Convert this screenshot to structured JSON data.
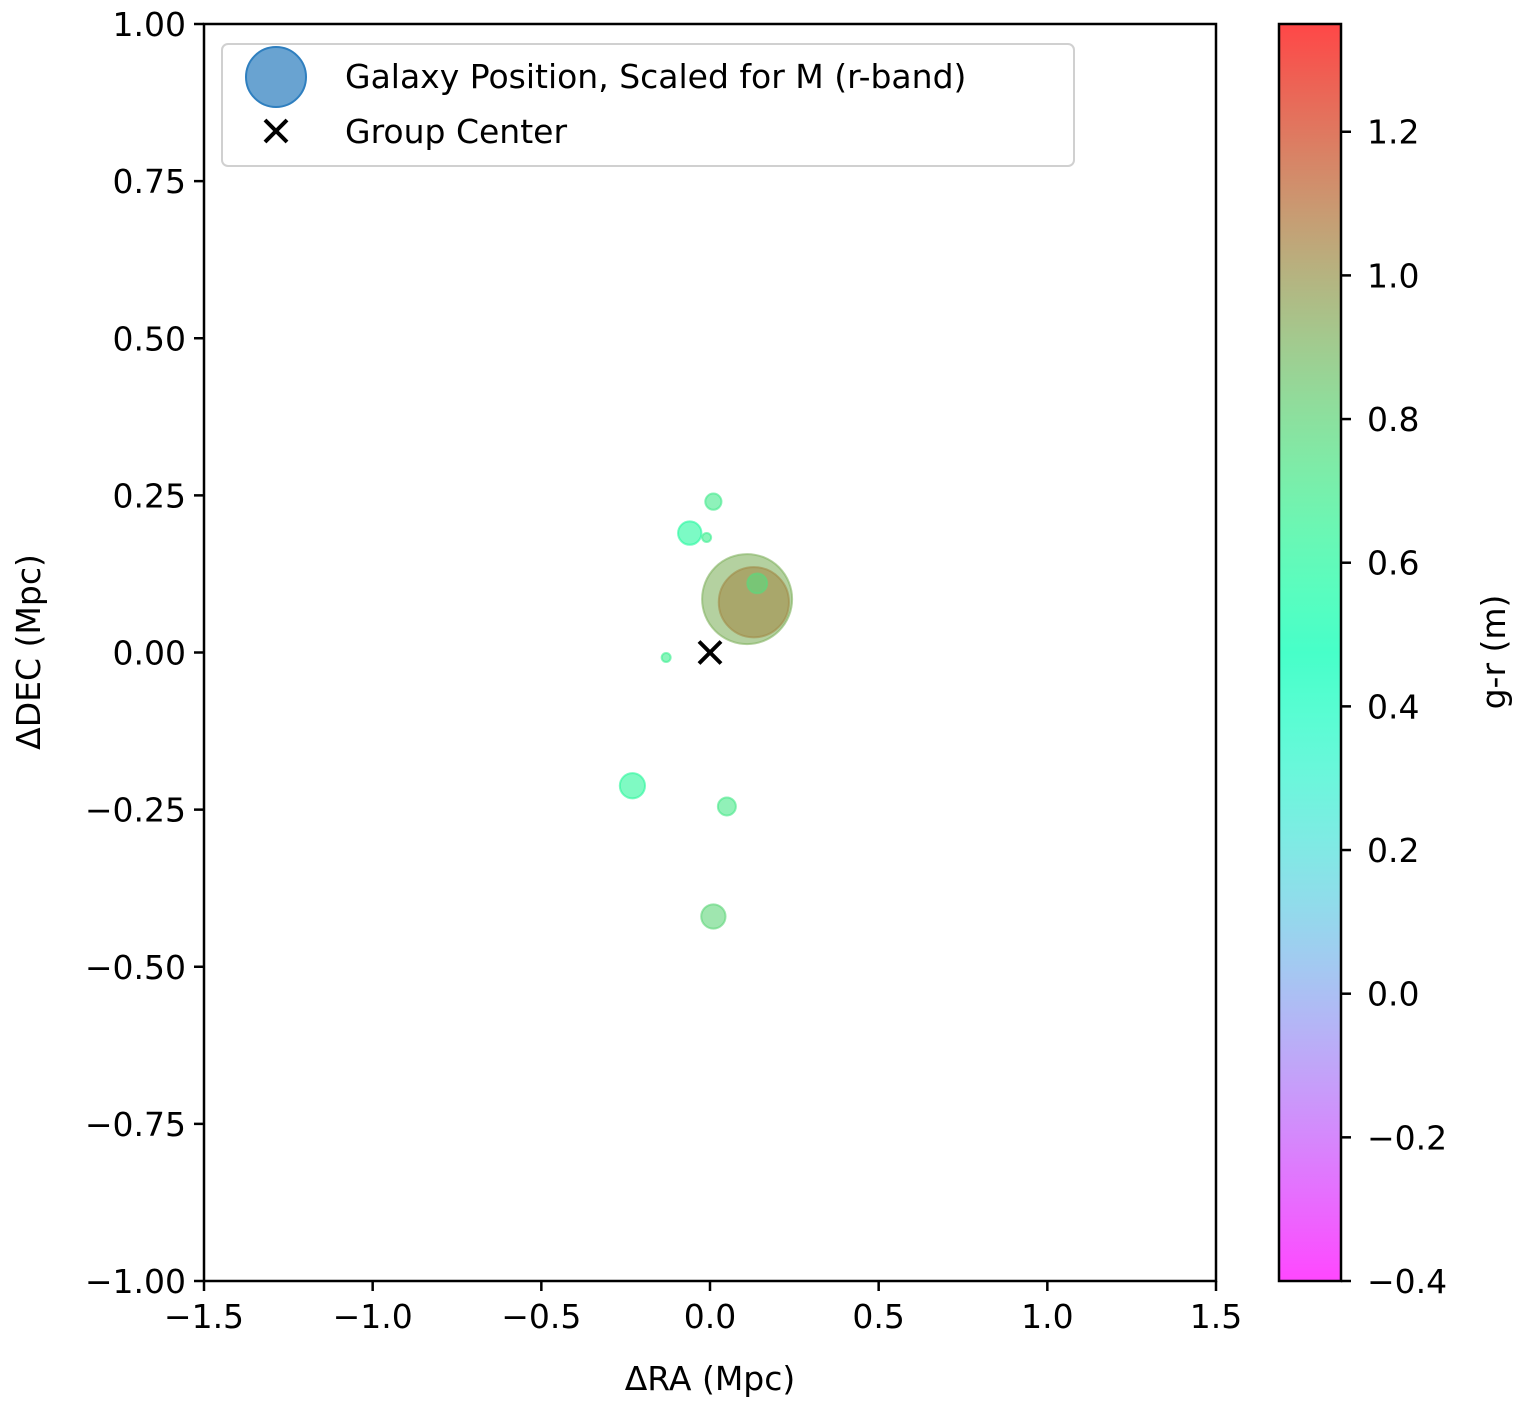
{
  "chart_data": {
    "type": "scatter",
    "xlabel": "ΔRA (Mpc)",
    "ylabel": "ΔDEC (Mpc)",
    "xlim": [
      -1.5,
      1.5
    ],
    "ylim": [
      -1.0,
      1.0
    ],
    "xticks": [
      -1.5,
      -1.0,
      -0.5,
      0.0,
      0.5,
      1.0,
      1.5
    ],
    "xtick_labels": [
      "−1.5",
      "−1.0",
      "−0.5",
      "0.0",
      "0.5",
      "1.0",
      "1.5"
    ],
    "yticks": [
      1.0,
      0.75,
      0.5,
      0.25,
      0.0,
      -0.25,
      -0.5,
      -0.75,
      -1.0
    ],
    "ytick_labels": [
      "1.00",
      "0.75",
      "0.50",
      "0.25",
      "0.00",
      "−0.25",
      "−0.50",
      "−0.75",
      "−1.00"
    ],
    "grid": false,
    "legend": {
      "placement": "upper-left",
      "entries": [
        {
          "label": "Galaxy Position, Scaled for M (r-band)",
          "marker": "circle",
          "color": "#2f7fbf"
        },
        {
          "label": "Group Center",
          "marker": "x",
          "color": "#000000"
        }
      ]
    },
    "colorbar": {
      "label": "g-r (m)",
      "range": [
        -0.4,
        1.35
      ],
      "ticks": [
        -0.4,
        -0.2,
        0.0,
        0.2,
        0.4,
        0.6,
        0.8,
        1.0,
        1.2
      ],
      "tick_labels": [
        "−0.4",
        "−0.2",
        "0.0",
        "0.2",
        "0.4",
        "0.6",
        "0.8",
        "1.0",
        "1.2"
      ],
      "colormap": "rainbow"
    },
    "series": [
      {
        "name": "Galaxy Position, Scaled for M (r-band)",
        "points": [
          {
            "x": 0.11,
            "y": 0.085,
            "g_r": 0.92,
            "size": 1.0
          },
          {
            "x": 0.13,
            "y": 0.08,
            "g_r": 1.03,
            "size": 0.78
          },
          {
            "x": 0.14,
            "y": 0.11,
            "g_r": 0.78,
            "size": 0.22
          },
          {
            "x": 0.01,
            "y": 0.24,
            "g_r": 0.7,
            "size": 0.18
          },
          {
            "x": -0.06,
            "y": 0.19,
            "g_r": 0.6,
            "size": 0.26
          },
          {
            "x": -0.01,
            "y": 0.183,
            "g_r": 0.68,
            "size": 0.1
          },
          {
            "x": -0.13,
            "y": -0.008,
            "g_r": 0.68,
            "size": 0.1
          },
          {
            "x": -0.23,
            "y": -0.212,
            "g_r": 0.62,
            "size": 0.28
          },
          {
            "x": 0.05,
            "y": -0.245,
            "g_r": 0.72,
            "size": 0.2
          },
          {
            "x": 0.01,
            "y": -0.42,
            "g_r": 0.8,
            "size": 0.27
          }
        ]
      },
      {
        "name": "Group Center",
        "points": [
          {
            "x": 0.0,
            "y": 0.0
          }
        ]
      }
    ]
  }
}
